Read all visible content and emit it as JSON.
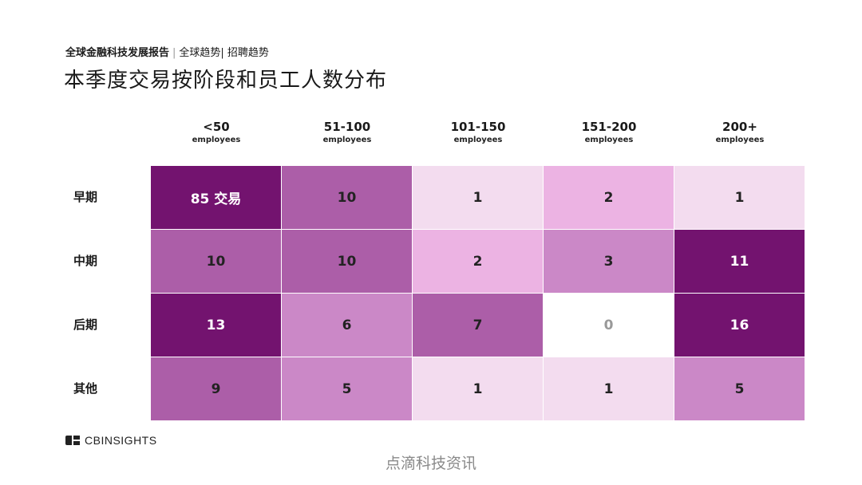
{
  "header": {
    "report_name": "全球金融科技发展报告",
    "sep": "|",
    "section": "全球趋势| 招聘趋势",
    "title": "本季度交易按阶段和员工人数分布"
  },
  "chart_data": {
    "type": "heatmap",
    "title": "本季度交易按阶段和员工人数分布",
    "columns": [
      {
        "range": "<50",
        "unit": "employees"
      },
      {
        "range": "51-100",
        "unit": "employees"
      },
      {
        "range": "101-150",
        "unit": "employees"
      },
      {
        "range": "151-200",
        "unit": "employees"
      },
      {
        "range": "200+",
        "unit": "employees"
      }
    ],
    "rows": [
      "早期",
      "中期",
      "后期",
      "其他"
    ],
    "values": [
      [
        85,
        10,
        1,
        2,
        1
      ],
      [
        10,
        10,
        2,
        3,
        11
      ],
      [
        13,
        6,
        7,
        0,
        16
      ],
      [
        9,
        5,
        1,
        1,
        5
      ]
    ],
    "first_cell_suffix": " 交易",
    "colors": {
      "dark": "#73136f",
      "medium": "#ac5ea8",
      "medium_light": "#cb88c7",
      "pink": "#ecb3e3",
      "light": "#f3dcef",
      "zero": "#ffffff"
    }
  },
  "footer": {
    "brand": "CBINSIGHTS",
    "watermark": "点滴科技资讯"
  }
}
